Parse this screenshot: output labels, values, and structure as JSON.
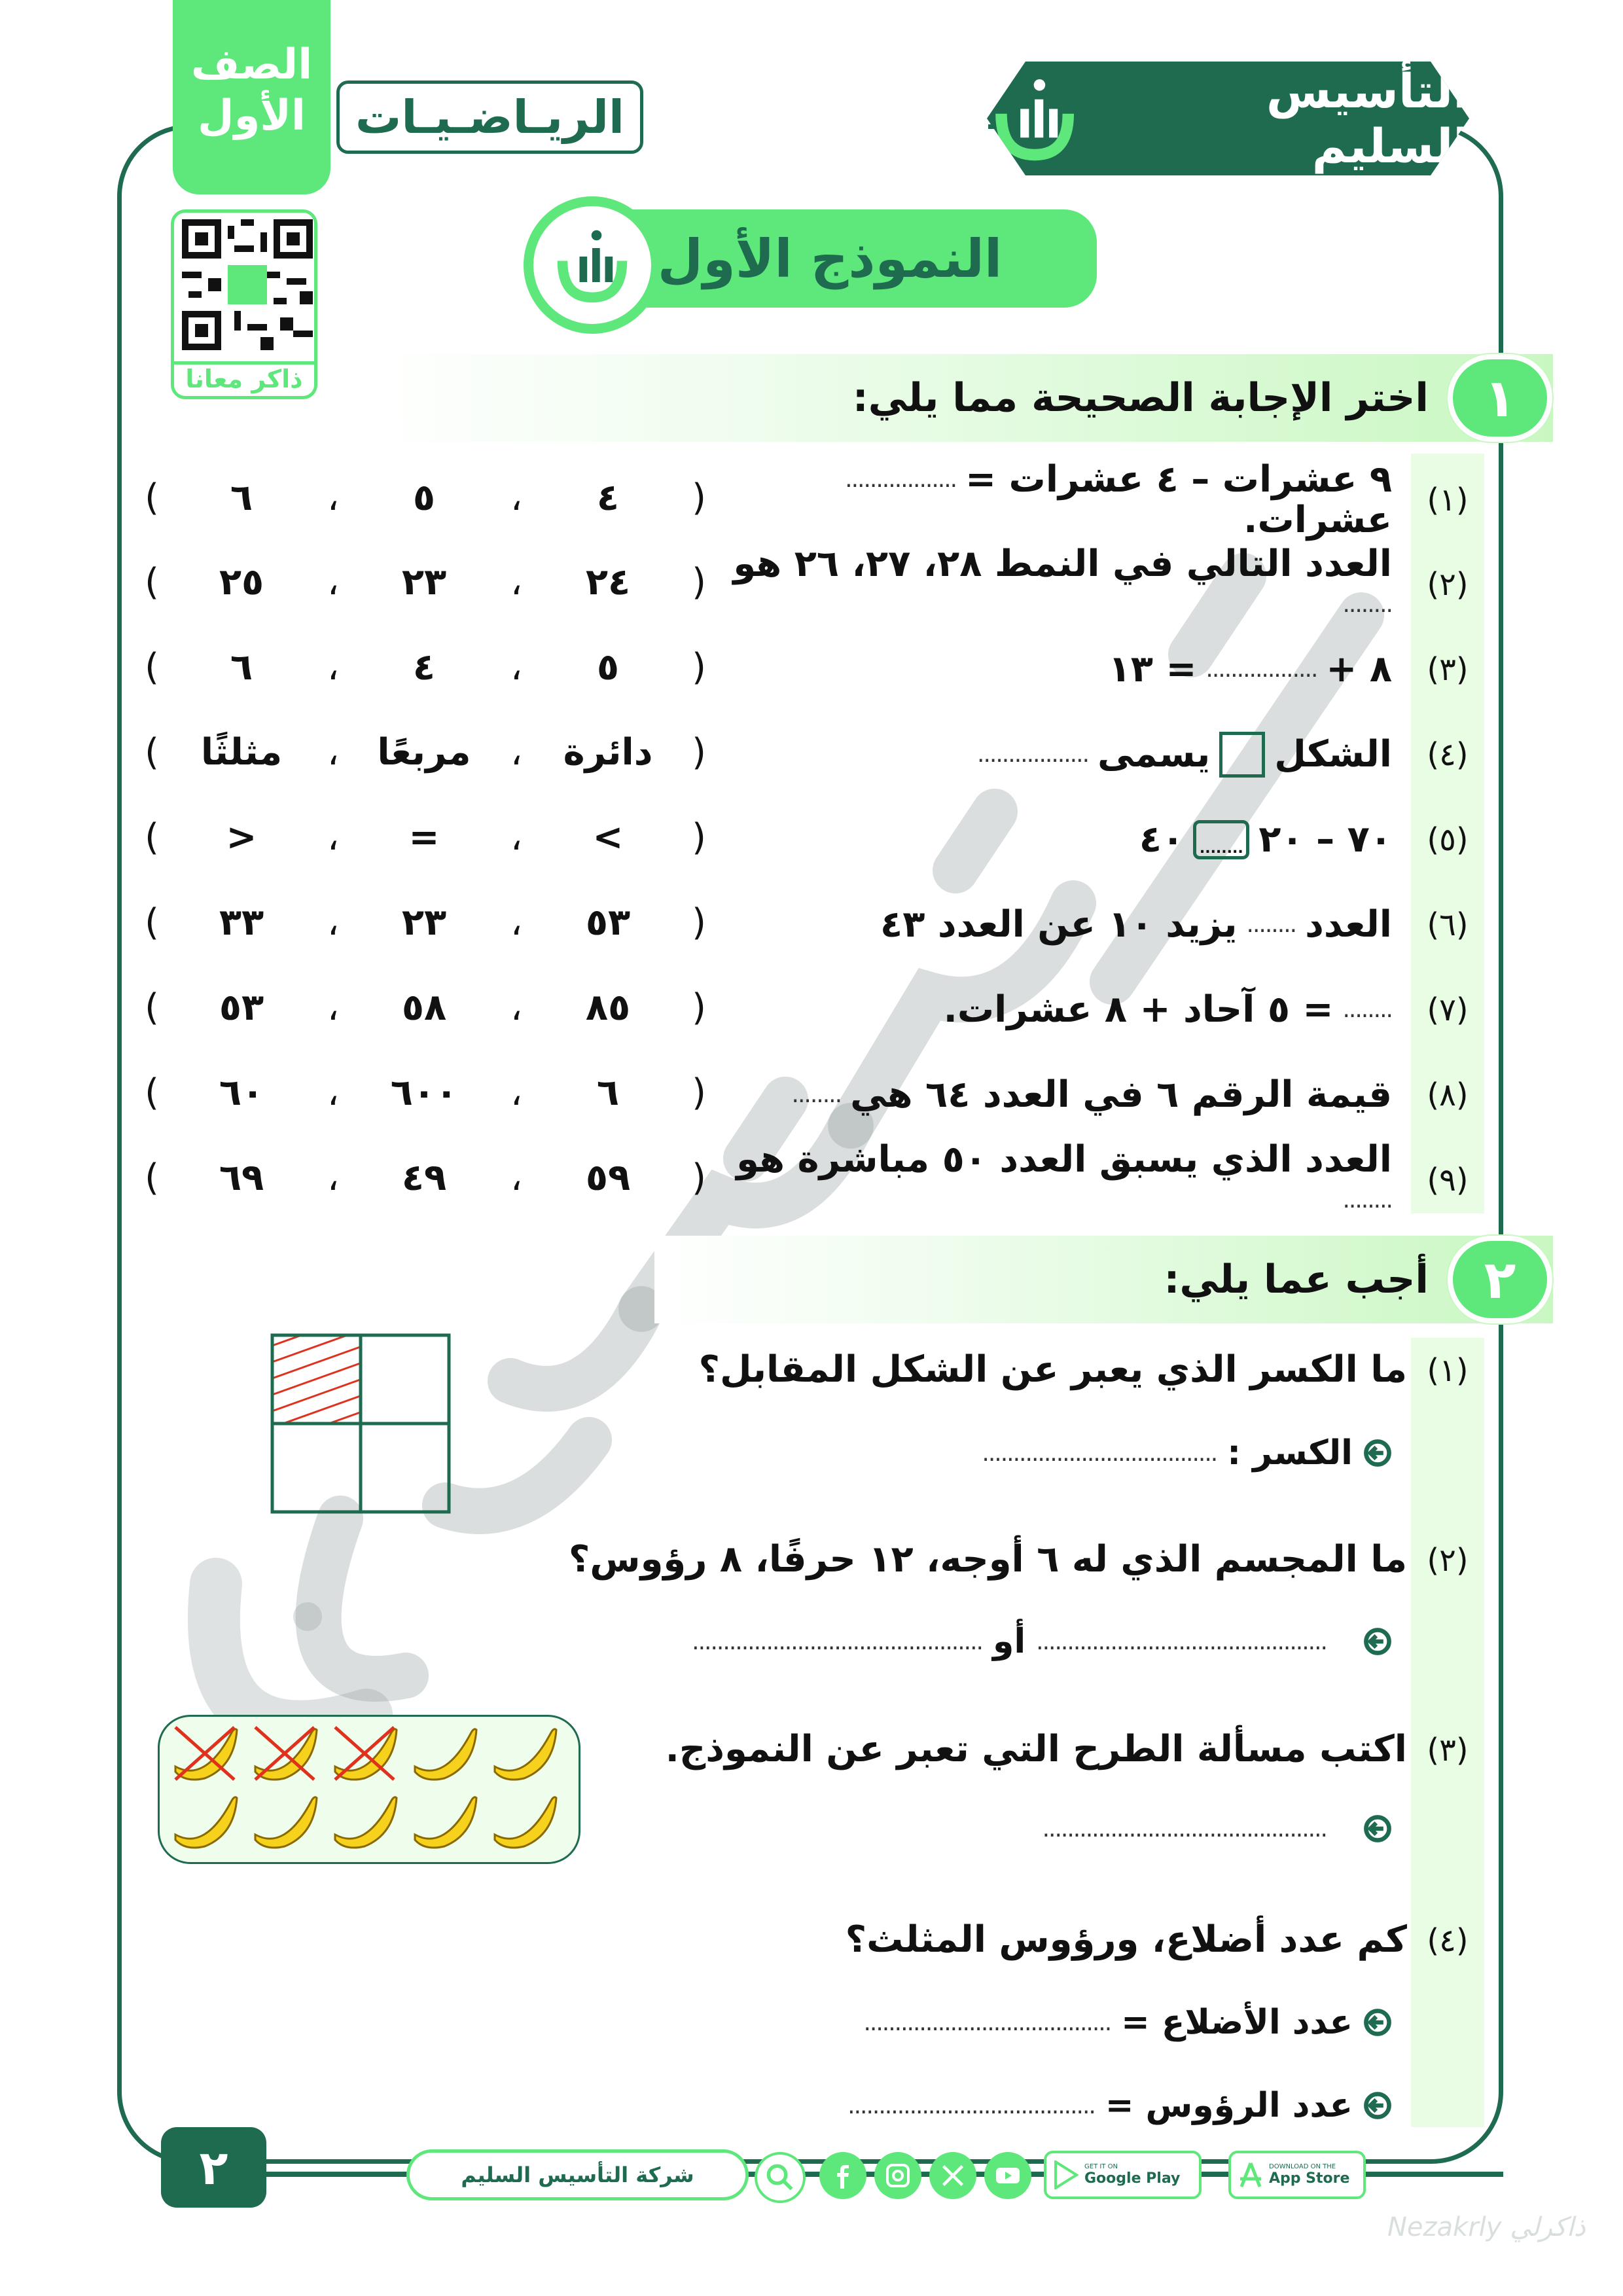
{
  "header": {
    "grade_line1": "الصف",
    "grade_line2": "الأول",
    "subject": "الريـاضـيـات",
    "brand": "التأسيس السليم",
    "qr_label": "ذاكر معانا",
    "model_title": "النموذج الأول"
  },
  "colors": {
    "dark_green": "#1e6b50",
    "bright_green": "#5ee77a",
    "light_green": "#e9fde5"
  },
  "section1": {
    "number": "١",
    "title": "اختر الإجابة الصحيحة مما يلي:",
    "questions": [
      {
        "num": "(١)",
        "parts": [
          "٩ عشرات – ٤ عشرات =",
          {
            "dots": ".................."
          },
          "عشرات."
        ],
        "options": [
          "٤",
          "٥",
          "٦"
        ]
      },
      {
        "num": "(٢)",
        "parts": [
          "العدد التالي في النمط ٢٨، ٢٧، ٢٦ هو",
          {
            "dots": "........"
          }
        ],
        "options": [
          "٢٤",
          "٢٣",
          "٢٥"
        ]
      },
      {
        "num": "(٣)",
        "parts": [
          "٨ +",
          {
            "dots": ".................."
          },
          "= ١٣"
        ],
        "options": [
          "٥",
          "٤",
          "٦"
        ]
      },
      {
        "num": "(٤)",
        "parts": [
          "الشكل",
          {
            "box": "square"
          },
          "يسمى",
          {
            "dots": ".................."
          }
        ],
        "options": [
          "دائرة",
          "مربعًا",
          "مثلثًا"
        ]
      },
      {
        "num": "(٥)",
        "parts": [
          "٧٠ – ٢٠",
          {
            "box": "dotted",
            "dots": "........"
          },
          "٤٠"
        ],
        "options": [
          "<",
          "=",
          ">"
        ]
      },
      {
        "num": "(٦)",
        "parts": [
          "العدد",
          {
            "dots": "........"
          },
          "يزيد ١٠ عن العدد ٤٣"
        ],
        "options": [
          "٥٣",
          "٢٣",
          "٣٣"
        ]
      },
      {
        "num": "(٧)",
        "parts": [
          {
            "dots": "........"
          },
          "= ٥ آحاد + ٨ عشرات."
        ],
        "options": [
          "٨٥",
          "٥٨",
          "٥٣"
        ]
      },
      {
        "num": "(٨)",
        "parts": [
          "قيمة الرقم ٦ في العدد ٦٤ هي",
          {
            "dots": "........"
          }
        ],
        "options": [
          "٦",
          "٦٠٠",
          "٦٠"
        ]
      },
      {
        "num": "(٩)",
        "parts": [
          "العدد الذي يسبق العدد ٥٠ مباشرة هو",
          {
            "dots": "........"
          }
        ],
        "options": [
          "٥٩",
          "٤٩",
          "٦٩"
        ]
      }
    ]
  },
  "section2": {
    "number": "٢",
    "title": "أجب عما يلي:",
    "q1": {
      "num": "(١)",
      "text": "ما الكسر الذي يعبر عن الشكل المقابل؟",
      "answer_label": "الكسر :",
      "dots": "......................................"
    },
    "q2": {
      "num": "(٢)",
      "text": "ما المجسم الذي له ٦ أوجه، ١٢ حرفًا، ٨ رؤوس؟",
      "or_label": "أو",
      "dots1": "...............................................",
      "dots2": "..............................................."
    },
    "q3": {
      "num": "(٣)",
      "text": "اكتب مسألة الطرح التي تعبر عن النموذج.",
      "dots": "..............................................",
      "bananas_total": 10,
      "bananas_crossed": 3
    },
    "q4": {
      "num": "(٤)",
      "text": "كم عدد أضلاع، ورؤوس المثلث؟",
      "sides_label": "عدد الأضلاع =",
      "vertices_label": "عدد الرؤوس =",
      "dots1": "........................................",
      "dots2": "........................................"
    },
    "fraction_shape": {
      "parts": 4,
      "shaded": 1
    }
  },
  "footer": {
    "page_number": "٢",
    "company": "شركة التأسيس السليم",
    "social_icons": [
      "facebook-icon",
      "instagram-icon",
      "x-icon",
      "youtube-icon"
    ],
    "google_small": "GET IT ON",
    "google_big": "Google Play",
    "apple_small": "DOWNLOAD ON THE",
    "apple_big": "App Store"
  },
  "watermark": {
    "text": "التأسيس السليم",
    "corner": "Nezakrly ذاكرلي"
  }
}
